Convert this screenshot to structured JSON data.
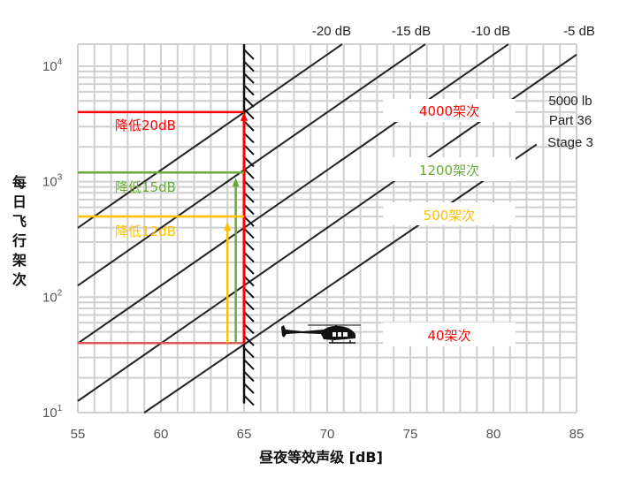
{
  "chart_data": {
    "type": "line",
    "xlabel": "昼夜等效声级 [dB]",
    "ylabel": "每日飞行架次",
    "xlim": [
      55,
      85
    ],
    "ylim": [
      10,
      15500
    ],
    "yscale": "log",
    "grid": true,
    "x_ticks": [
      "55",
      "60",
      "65",
      "70",
      "75",
      "80",
      "85"
    ],
    "x_tick_values": [
      55,
      60,
      65,
      70,
      75,
      80,
      85
    ],
    "y_ticks": [
      {
        "base": "10",
        "exp": "1",
        "value": 10
      },
      {
        "base": "10",
        "exp": "2",
        "value": 100
      },
      {
        "base": "10",
        "exp": "3",
        "value": 1000
      },
      {
        "base": "10",
        "exp": "4",
        "value": 10000
      }
    ],
    "series": [
      {
        "name": "-20 dB",
        "color": "#222222",
        "points": [
          [
            55,
            398
          ],
          [
            70.9,
            15500
          ]
        ]
      },
      {
        "name": "-15 dB",
        "color": "#222222",
        "points": [
          [
            55,
            126
          ],
          [
            75.9,
            15500
          ]
        ]
      },
      {
        "name": "-10 dB",
        "color": "#222222",
        "points": [
          [
            55,
            39.8
          ],
          [
            80.9,
            15500
          ]
        ]
      },
      {
        "name": "-5 dB",
        "color": "#222222",
        "points": [
          [
            55,
            12.6
          ],
          [
            85,
            12600
          ]
        ]
      },
      {
        "name": "5000 lb Part 36 Stage 3",
        "color": "#222222",
        "points": [
          [
            59,
            10
          ],
          [
            82.6,
            2100
          ]
        ]
      }
    ],
    "limit_line": {
      "x": 65,
      "y_from": 12,
      "y_to": 15500,
      "hatched": true
    },
    "annotations": [
      {
        "label": "降低20dB",
        "color": "#ff0000",
        "y": 4000,
        "x_from": 55,
        "x_to": 65,
        "arrow_x": 65,
        "arrow_from": 40
      },
      {
        "label": "降低15dB",
        "color": "#6aaa3a",
        "y": 1200,
        "x_from": 55,
        "x_to": 65,
        "arrow_x": 64.5,
        "arrow_from": 40
      },
      {
        "label": "降低12dB",
        "color": "#ffc000",
        "y": 500,
        "x_from": 55,
        "x_to": 65,
        "arrow_x": 64,
        "arrow_from": 40
      }
    ],
    "baseline": {
      "y": 40,
      "x_from": 55,
      "x_to": 65,
      "color": "#e05555"
    },
    "box_labels": [
      {
        "text": "4000架次",
        "color": "#ff0000"
      },
      {
        "text": "1200架次",
        "color": "#6aaa3a"
      },
      {
        "text": "500架次",
        "color": "#ffc000"
      },
      {
        "text": "40架次",
        "color": "#ff0000"
      }
    ],
    "stage_label": [
      "5000 lb",
      "Part 36",
      "Stage 3"
    ],
    "icon": "helicopter-icon"
  }
}
